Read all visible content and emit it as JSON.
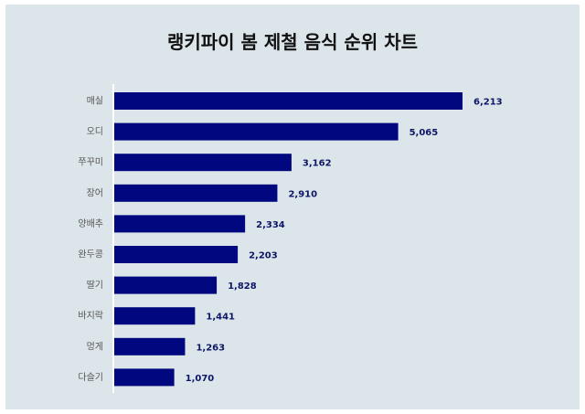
{
  "title": "랭키파이 봄 제철 음식 순위 차트",
  "colors": {
    "background": "#dce6ea",
    "bar": "#00077f",
    "value_text": "#0d1666",
    "axis": "#ffffff"
  },
  "chart_data": {
    "type": "bar",
    "orientation": "horizontal",
    "title": "랭키파이 봄 제철 음식 순위 차트",
    "categories": [
      "매실",
      "오디",
      "쭈꾸미",
      "장어",
      "양배추",
      "완두콩",
      "딸기",
      "바지락",
      "멍게",
      "다슬기"
    ],
    "values": [
      6213,
      5065,
      3162,
      2910,
      2334,
      2203,
      1828,
      1441,
      1263,
      1070
    ],
    "value_labels": [
      "6,213",
      "5,065",
      "3,162",
      "2,910",
      "2,334",
      "2,203",
      "1,828",
      "1,441",
      "1,263",
      "1,070"
    ],
    "xlim": [
      0,
      6213
    ],
    "grid": false,
    "legend": "none"
  }
}
